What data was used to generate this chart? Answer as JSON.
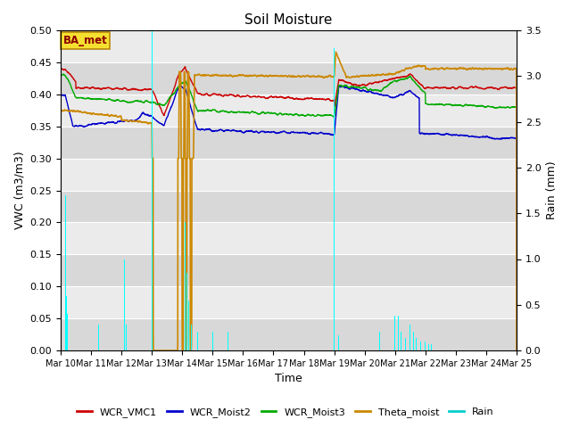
{
  "title": "Soil Moisture",
  "xlabel": "Time",
  "ylabel_left": "VWC (m3/m3)",
  "ylabel_right": "Rain (mm)",
  "ylim_left": [
    0.0,
    0.5
  ],
  "ylim_right": [
    0.0,
    3.5
  ],
  "xlim": [
    0,
    15
  ],
  "x_tick_labels": [
    "Mar 10",
    "Mar 11",
    "Mar 12",
    "Mar 13",
    "Mar 14",
    "Mar 15",
    "Mar 16",
    "Mar 17",
    "Mar 18",
    "Mar 19",
    "Mar 20",
    "Mar 21",
    "Mar 22",
    "Mar 23",
    "Mar 24",
    "Mar 25"
  ],
  "station_label": "BA_met",
  "bg_light": "#ebebeb",
  "bg_dark": "#d8d8d8",
  "legend_names": [
    "WCR_VMC1",
    "WCR_Moist2",
    "WCR_Moist3",
    "Theta_moist",
    "Rain"
  ],
  "legend_colors": [
    "#cc0000",
    "#0000cc",
    "#00aa00",
    "#cc8800",
    "#00cccc"
  ],
  "title_fontsize": 11,
  "axis_fontsize": 9,
  "tick_fontsize": 8,
  "figsize": [
    6.4,
    4.8
  ],
  "dpi": 100
}
